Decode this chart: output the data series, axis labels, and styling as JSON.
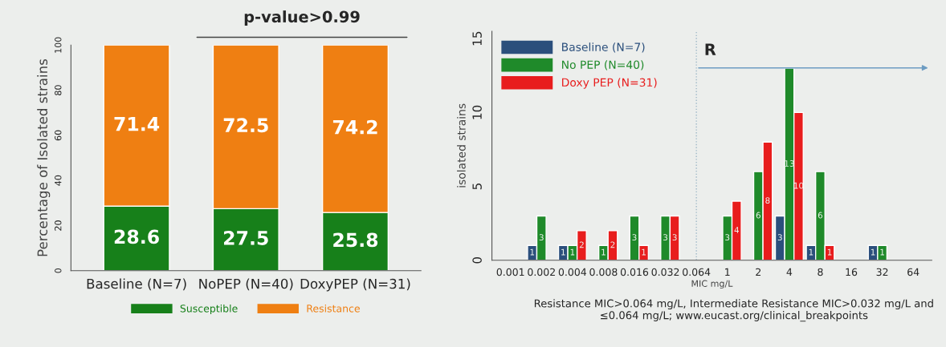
{
  "chart_data": [
    {
      "type": "bar",
      "stacked": true,
      "title": "p-value>0.99",
      "ylabel": "Percentage of Isolated strains",
      "categories": [
        "Baseline (N=7)",
        "NoPEP (N=40)",
        "DoxyPEP (N=31)"
      ],
      "series": [
        {
          "name": "Susceptible",
          "color": "#17801a",
          "values": [
            28.6,
            27.5,
            25.8
          ]
        },
        {
          "name": "Resistance",
          "color": "#ef7f12",
          "values": [
            71.4,
            72.5,
            74.2
          ]
        }
      ],
      "ylim": [
        0,
        100
      ],
      "yticks": [
        0,
        20,
        40,
        60,
        80,
        100
      ],
      "data_labels": true,
      "legend": "bottom",
      "grid": false
    },
    {
      "type": "bar",
      "xlabel": "MIC mg/L",
      "ylabel": "isolated strains",
      "categories": [
        "0.001",
        "0.002",
        "0.004",
        "0.008",
        "0.016",
        "0.032",
        "0.064",
        "1",
        "2",
        "4",
        "8",
        "16",
        "32",
        "64"
      ],
      "series": [
        {
          "name": "Baseline (N=7)",
          "color": "#2b4f7c",
          "values": [
            null,
            1,
            1,
            null,
            null,
            null,
            null,
            null,
            null,
            3,
            1,
            null,
            1,
            null
          ]
        },
        {
          "name": "No PEP (N=40)",
          "color": "#1f8a2a",
          "values": [
            null,
            3,
            1,
            1,
            3,
            3,
            null,
            3,
            6,
            13,
            6,
            null,
            1,
            null
          ]
        },
        {
          "name": "Doxy PEP (N=31)",
          "color": "#e81d1d",
          "values": [
            null,
            null,
            2,
            2,
            1,
            3,
            null,
            4,
            8,
            10,
            1,
            null,
            null,
            null
          ]
        }
      ],
      "ylim": [
        0,
        15.5
      ],
      "yticks": [
        0,
        5,
        10,
        15
      ],
      "data_labels": true,
      "legend": "top left",
      "grid": false,
      "ref_lines": [
        {
          "axis": "x",
          "value": "0.064",
          "label": "R",
          "line_style": "dotted",
          "color": "#9fb8c8"
        }
      ],
      "annotations": [
        "Resistance MIC>0.064 mg/L, Intermediate Resistance MIC>0.032 mg/L and ≤0.064 mg/L; www.eucast.org/clinical_breakpoints"
      ]
    }
  ]
}
